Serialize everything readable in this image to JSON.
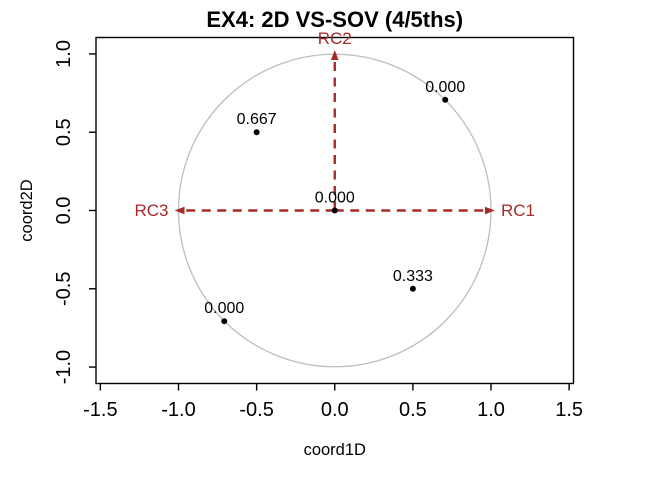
{
  "chart_data": {
    "type": "scatter",
    "title": "EX4: 2D VS-SOV (4/5ths)",
    "xlabel": "coord1D",
    "ylabel": "coord2D",
    "xlim": [
      -1.528,
      1.528
    ],
    "ylim": [
      -1.105,
      1.105
    ],
    "grid": false,
    "legend": null,
    "x_tick_values": [
      -1.5,
      -1.0,
      -0.5,
      0.0,
      0.5,
      1.0,
      1.5
    ],
    "x_tick_labels": [
      "-1.5",
      "-1.0",
      "-0.5",
      "0.0",
      "0.5",
      "1.0",
      "1.5"
    ],
    "y_tick_values": [
      -1.0,
      -0.5,
      0.0,
      0.5,
      1.0
    ],
    "y_tick_labels": [
      "-1.0",
      "-0.5",
      "0.0",
      "0.5",
      "1.0"
    ],
    "unit_circle": {
      "cx": 0,
      "cy": 0,
      "r": 1
    },
    "points": [
      {
        "x": 0.707,
        "y": 0.707,
        "label": "0.000"
      },
      {
        "x": -0.5,
        "y": 0.5,
        "label": "0.667"
      },
      {
        "x": 0.0,
        "y": 0.0,
        "label": "0.000"
      },
      {
        "x": 0.5,
        "y": -0.5,
        "label": "0.333"
      },
      {
        "x": -0.707,
        "y": -0.707,
        "label": "0.000"
      }
    ],
    "vectors": [
      {
        "name": "RC1",
        "x": 1,
        "y": 0,
        "label_anchor": "start"
      },
      {
        "name": "RC2",
        "x": 0,
        "y": 1,
        "label_anchor": "middle"
      },
      {
        "name": "RC3",
        "x": -1,
        "y": 0,
        "label_anchor": "end"
      }
    ],
    "colors": {
      "arrow": "#A52A2A",
      "point": "#000000",
      "circle": "#BEBEBE",
      "axis": "#000000",
      "text": "#000000",
      "background": "#FFFFFF"
    }
  }
}
